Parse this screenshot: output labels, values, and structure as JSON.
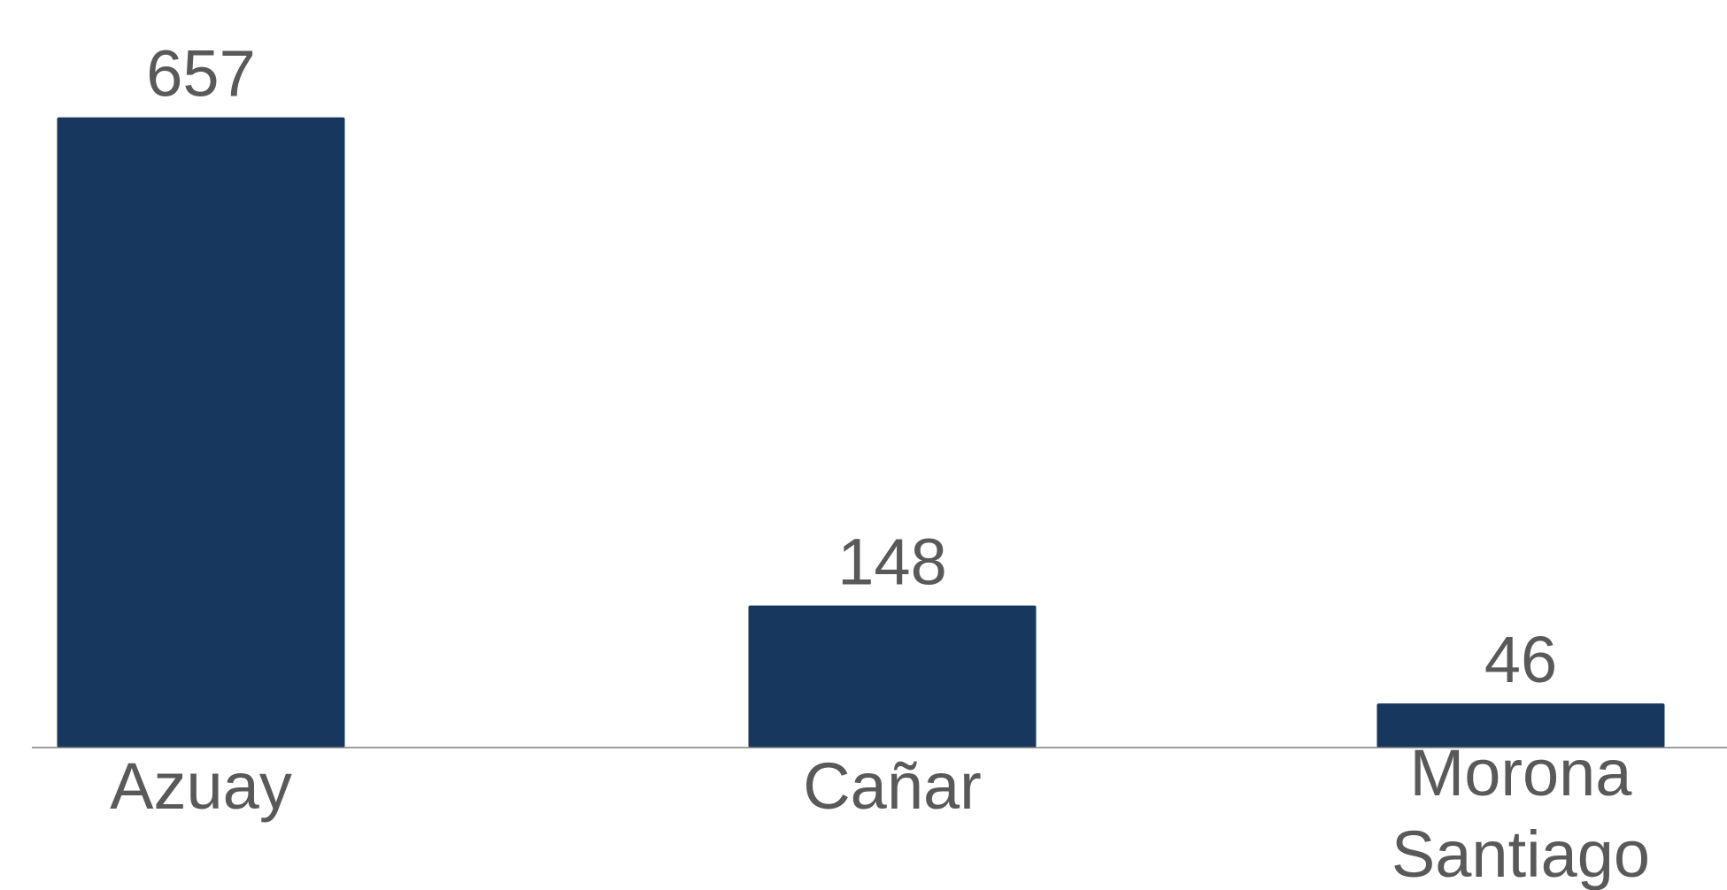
{
  "chart_data": {
    "type": "bar",
    "categories": [
      "Azuay",
      "Cañar",
      "Morona Santiago"
    ],
    "values": [
      657,
      148,
      46
    ],
    "color": "#17375e",
    "ylim": [
      0,
      700
    ]
  }
}
